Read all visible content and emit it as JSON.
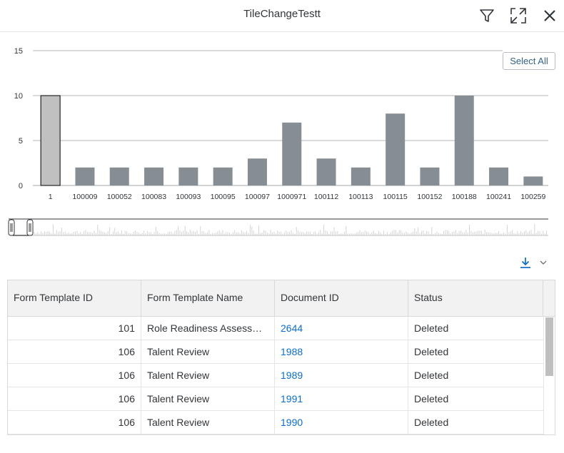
{
  "header": {
    "title": "TileChangeTestt"
  },
  "toolbar": {
    "select_all_label": "Select All",
    "filter_icon": "filter-icon",
    "fullscreen_icon": "fullscreen-icon",
    "close_icon": "close-icon",
    "download_icon": "download-icon",
    "dropdown_icon": "chevron-down-icon"
  },
  "colors": {
    "bar": "#868e93",
    "bar_selected": "#c0c0c0",
    "link": "#0a6ed1",
    "header_bg": "#f2f2f2"
  },
  "chart_data": {
    "type": "bar",
    "categories": [
      "1",
      "100009",
      "100052",
      "100083",
      "100093",
      "100095",
      "100097",
      "1000971",
      "100112",
      "100113",
      "100115",
      "100152",
      "100188",
      "100241",
      "100259"
    ],
    "values": [
      10,
      2,
      2,
      2,
      2,
      2,
      3,
      7,
      3,
      2,
      8,
      2,
      10,
      2,
      1
    ],
    "selected_index": 0,
    "yticks": [
      0,
      5,
      10,
      15
    ],
    "ylim": [
      0,
      15
    ],
    "grid": true,
    "title": "",
    "xlabel": "",
    "ylabel": ""
  },
  "table": {
    "columns": [
      "Form Template ID",
      "Form Template Name",
      "Document ID",
      "Status"
    ],
    "rows": [
      {
        "template_id": "101",
        "template_name": "Role Readiness Assessm...",
        "document_id": "2644",
        "status": "Deleted"
      },
      {
        "template_id": "106",
        "template_name": "Talent Review",
        "document_id": "1988",
        "status": "Deleted"
      },
      {
        "template_id": "106",
        "template_name": "Talent Review",
        "document_id": "1989",
        "status": "Deleted"
      },
      {
        "template_id": "106",
        "template_name": "Talent Review",
        "document_id": "1991",
        "status": "Deleted"
      },
      {
        "template_id": "106",
        "template_name": "Talent Review",
        "document_id": "1990",
        "status": "Deleted"
      }
    ]
  }
}
